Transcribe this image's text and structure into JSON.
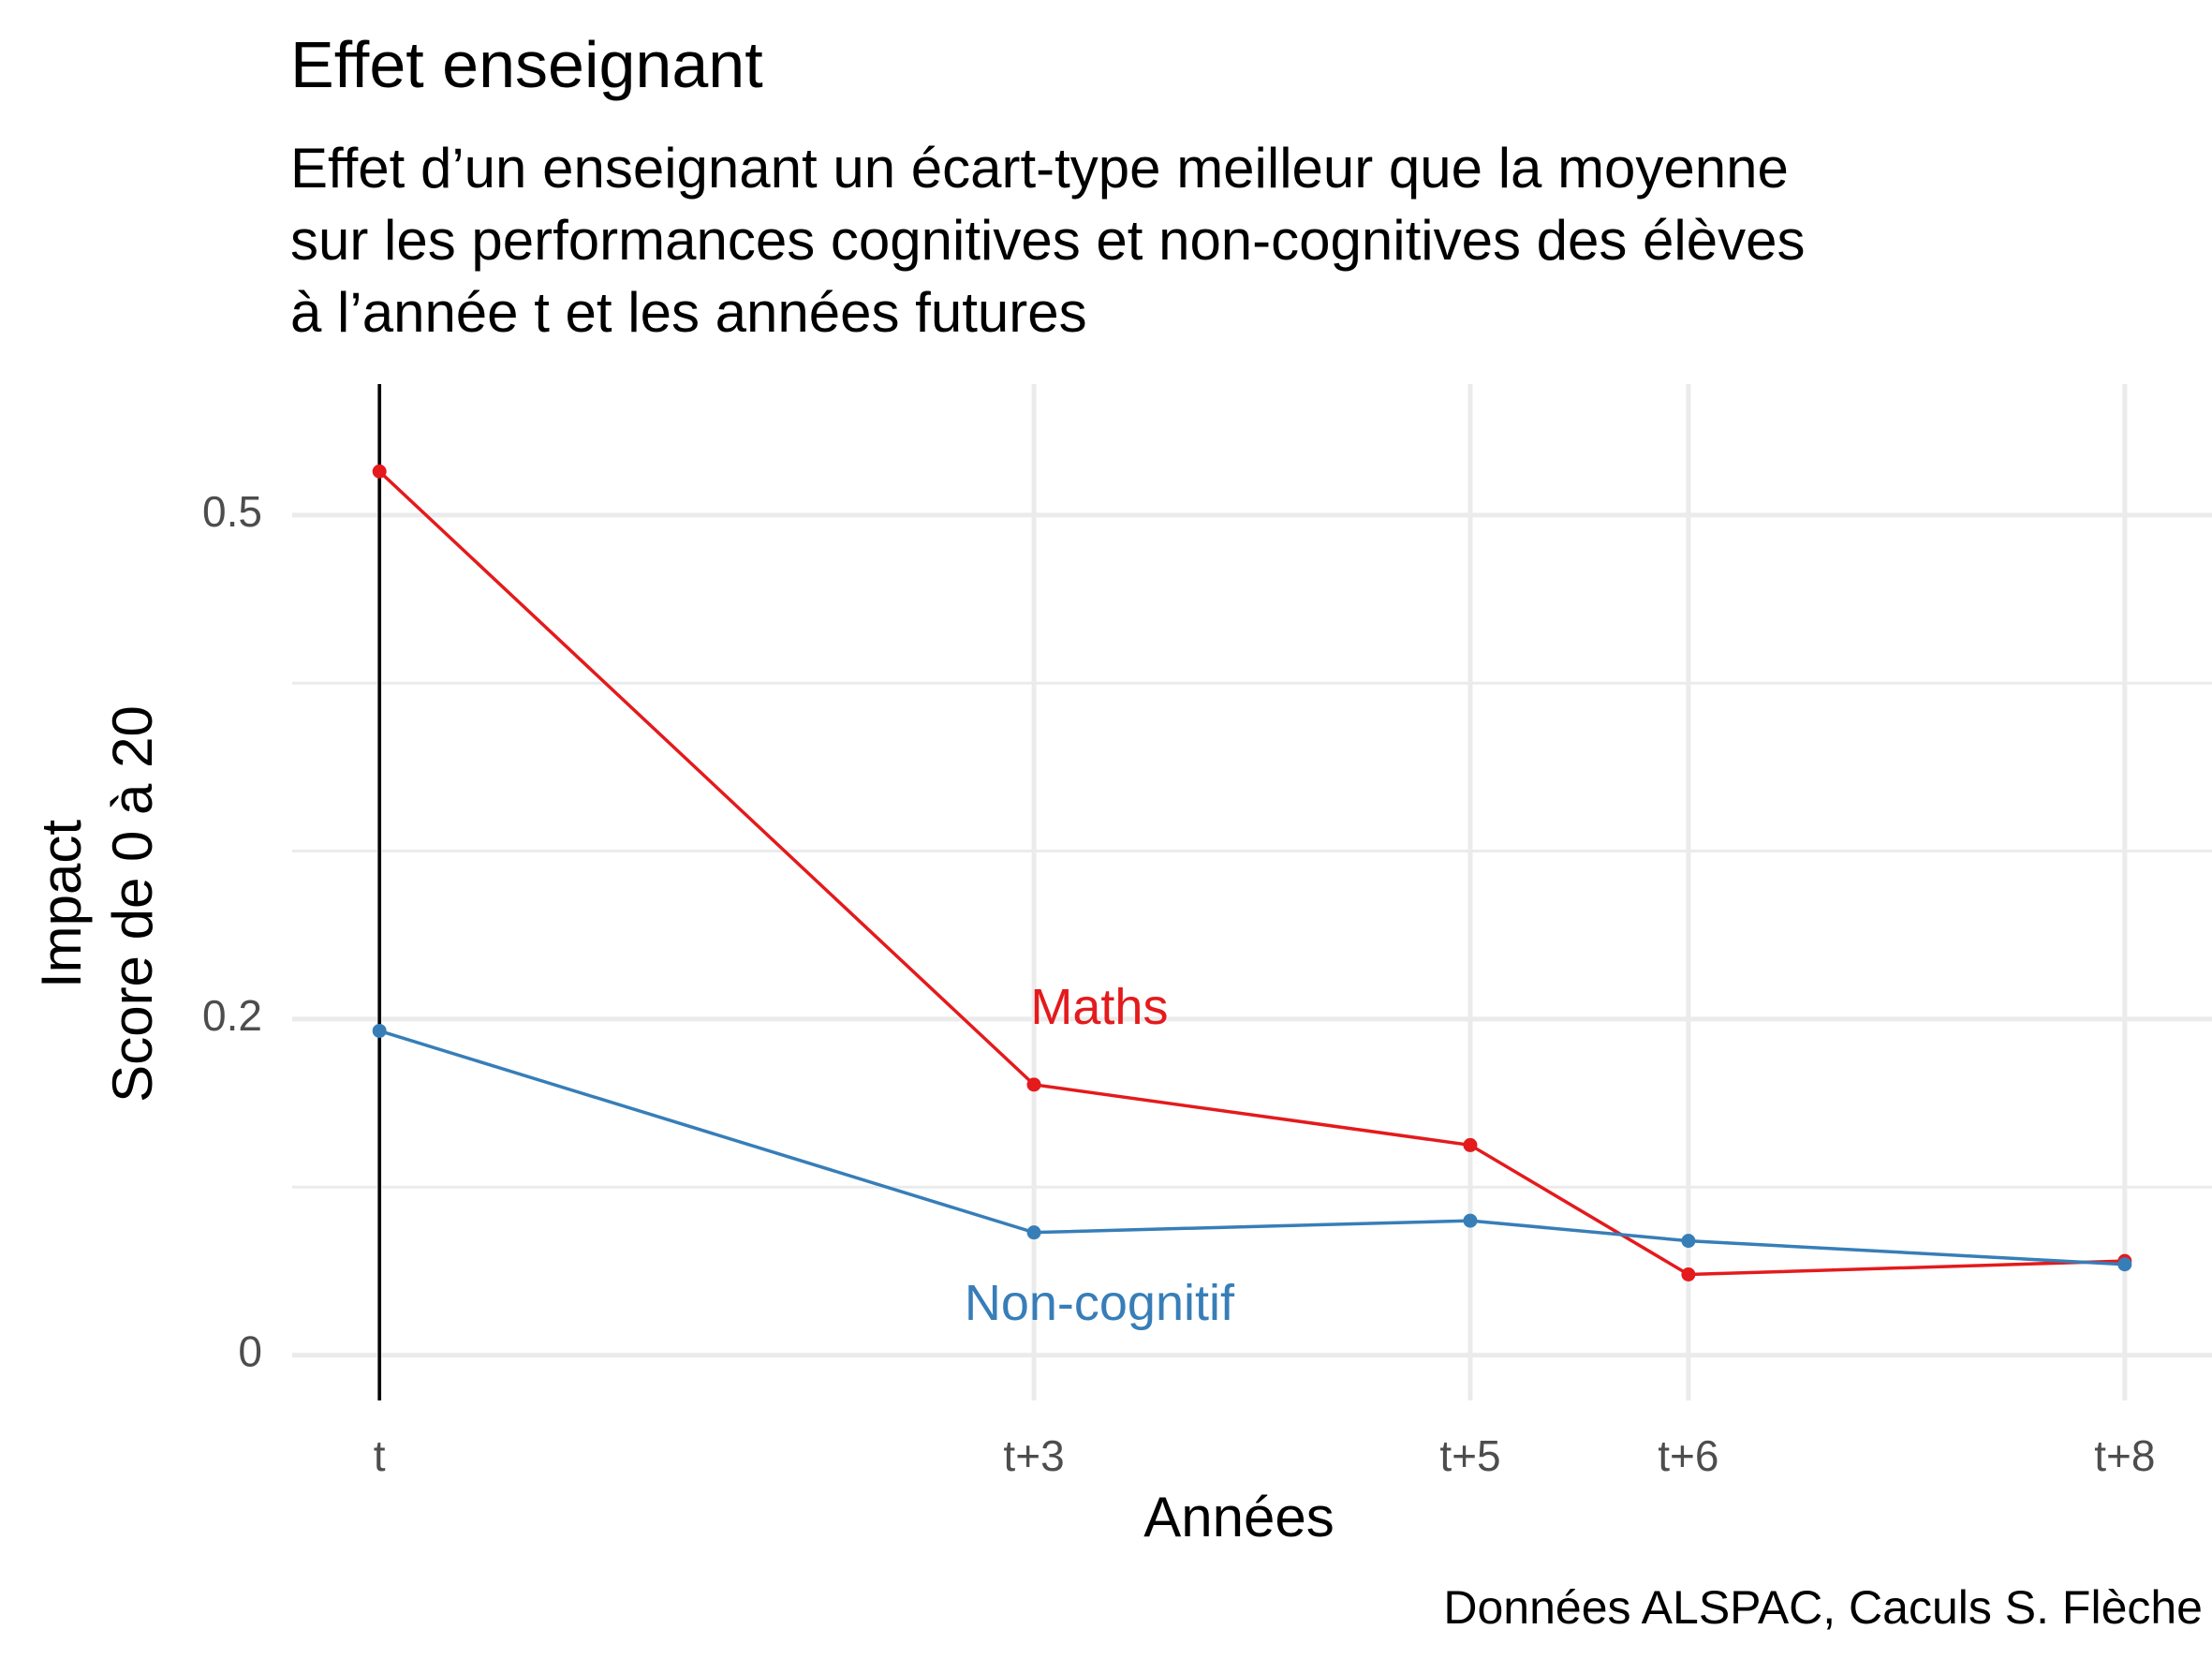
{
  "chart_data": {
    "type": "line",
    "title": "Effet enseignant",
    "subtitle": [
      "Effet d’un enseignant un écart-type meilleur que la moyenne",
      "sur les performances cognitives et non-cognitives des élèves",
      "à l’année t et les années futures"
    ],
    "xlabel": "Années",
    "ylabel": [
      "Impact",
      "Score de 0 à 20"
    ],
    "caption": "Données ALSPAC, Caculs S. Flèche",
    "x": [
      0,
      3,
      5,
      6,
      8
    ],
    "xticks": [
      {
        "value": 0,
        "label": "t"
      },
      {
        "value": 3,
        "label": "t+3"
      },
      {
        "value": 5,
        "label": "t+5"
      },
      {
        "value": 6,
        "label": "t+6"
      },
      {
        "value": 8,
        "label": "t+8"
      }
    ],
    "yticks": [
      {
        "value": 0,
        "label": "0"
      },
      {
        "value": 0.2,
        "label": "0.2"
      },
      {
        "value": 0.5,
        "label": "0.5"
      }
    ],
    "yminor": [
      0.1,
      0.3,
      0.4
    ],
    "xlim": [
      -0.4,
      8.4
    ],
    "ylim": [
      -0.027,
      0.578
    ],
    "grid": true,
    "vline_x": 0,
    "series": [
      {
        "name": "Maths",
        "color": "#e41a1c",
        "values": [
          0.526,
          0.161,
          0.125,
          0.048,
          0.056
        ],
        "label_at": {
          "x": 3.3,
          "y": 0.205
        }
      },
      {
        "name": "Non-cognitif",
        "color": "#377eb8",
        "values": [
          0.193,
          0.073,
          0.08,
          0.068,
          0.054
        ],
        "label_at": {
          "x": 3.3,
          "y": 0.029
        }
      }
    ]
  }
}
